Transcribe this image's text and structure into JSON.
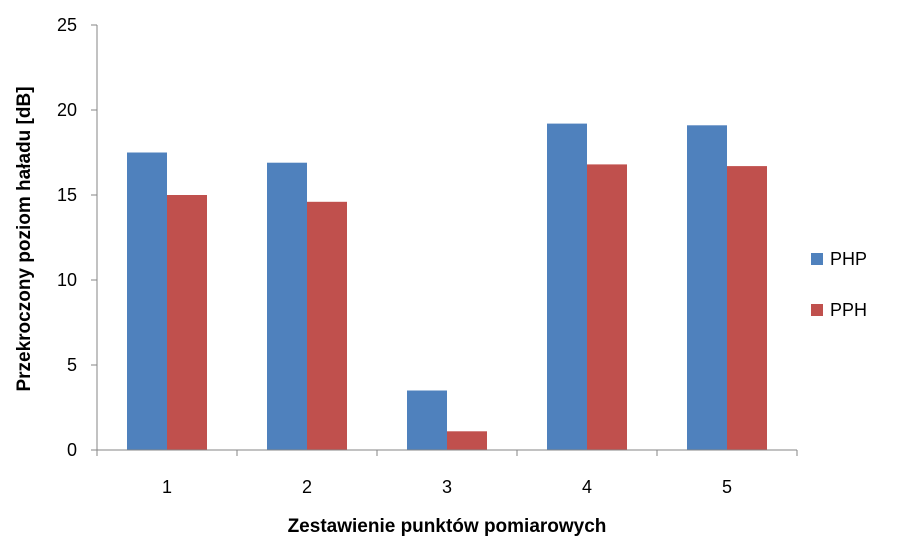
{
  "chart_data": {
    "type": "bar",
    "categories": [
      "1",
      "2",
      "3",
      "4",
      "5"
    ],
    "series": [
      {
        "name": "PHP",
        "color": "#4F81BD",
        "values": [
          17.5,
          16.9,
          3.5,
          19.2,
          19.1
        ]
      },
      {
        "name": "PPH",
        "color": "#C0504D",
        "values": [
          15.0,
          14.6,
          1.1,
          16.8,
          16.7
        ]
      }
    ],
    "title": "",
    "xlabel": "Zestawienie punktów pomiarowych",
    "ylabel": "Przekroczony poziom haładu [dB]",
    "ylim": [
      0,
      25
    ],
    "yticks": [
      0,
      5,
      10,
      15,
      20,
      25
    ],
    "grid": false,
    "legend_position": "right"
  }
}
